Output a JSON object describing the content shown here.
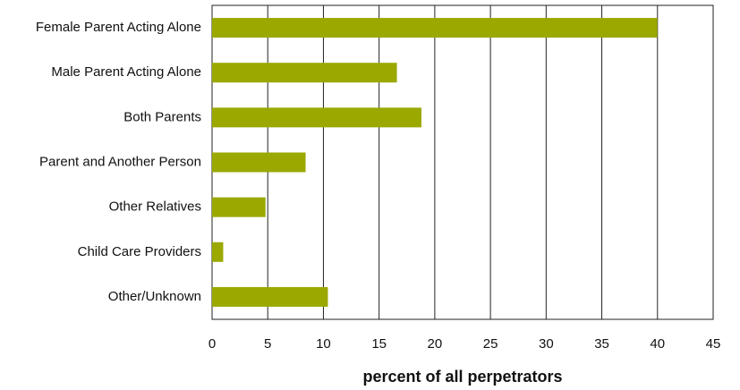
{
  "chart_data": {
    "type": "barh",
    "x_label": "percent of all perpetrators",
    "categories": [
      "Female Parent Acting Alone",
      "Male Parent Acting Alone",
      "Both Parents",
      "Parent and Another Person",
      "Other Relatives",
      "Child Care Providers",
      "Other/Unknown"
    ],
    "values": [
      40,
      16.6,
      18.8,
      8.4,
      4.8,
      1.0,
      10.4
    ],
    "color": "#9aa800",
    "xlim": [
      0,
      45
    ],
    "xticks": [
      0,
      5,
      10,
      15,
      20,
      25,
      30,
      35,
      40,
      45
    ],
    "grid": true
  }
}
